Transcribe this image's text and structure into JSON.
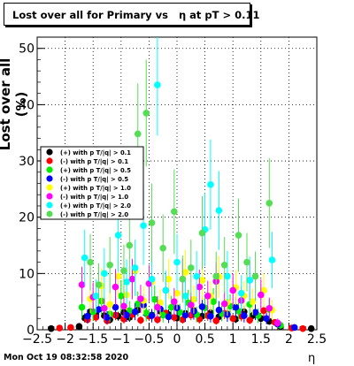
{
  "chart_data": {
    "type": "scatter",
    "title": "Lost over all for Primary vs   η at pT > 0.11",
    "xlabel": "η",
    "ylabel": "Lost over all (%)",
    "xlim": [
      -2.5,
      2.5
    ],
    "ylim": [
      0,
      52
    ],
    "x_ticks": [
      "−2.5",
      "−2",
      "−1.5",
      "−1",
      "−0.5",
      "0",
      "0.5",
      "1",
      "1.5",
      "2",
      "2.5"
    ],
    "y_ticks": [
      "0",
      "10",
      "20",
      "30",
      "40",
      "50"
    ],
    "grid": true,
    "legend_placement": "left-middle",
    "series": [
      {
        "name": "(+) with p T/|q| > 0.1",
        "color": "#000000",
        "points": [
          [
            -2.25,
            0.2
          ],
          [
            -1.75,
            0.6
          ],
          [
            -1.65,
            2.1
          ],
          [
            -1.55,
            3.2
          ],
          [
            -1.45,
            2.8
          ],
          [
            -1.3,
            2.5
          ],
          [
            -1.2,
            1.8
          ],
          [
            -1.05,
            2.4
          ],
          [
            -0.95,
            3.1
          ],
          [
            -0.85,
            2.2
          ],
          [
            -0.7,
            3.5
          ],
          [
            -0.55,
            2.9
          ],
          [
            -0.45,
            2.6
          ],
          [
            -0.3,
            3.3
          ],
          [
            -0.15,
            2.7
          ],
          [
            0.0,
            2.1
          ],
          [
            0.15,
            2.9
          ],
          [
            0.3,
            3.4
          ],
          [
            0.45,
            2.4
          ],
          [
            0.6,
            3.0
          ],
          [
            0.75,
            2.3
          ],
          [
            0.9,
            2.8
          ],
          [
            1.05,
            1.9
          ],
          [
            1.2,
            3.2
          ],
          [
            1.35,
            2.5
          ],
          [
            1.5,
            2.0
          ],
          [
            1.65,
            1.5
          ],
          [
            1.85,
            0.6
          ],
          [
            2.4,
            0.2
          ]
        ],
        "err": [
          0.3,
          0.5,
          0.8,
          1.0,
          0.9,
          0.8,
          0.7,
          0.8,
          1.0,
          0.8,
          1.1,
          0.9,
          0.9,
          1.0,
          0.9,
          0.8,
          0.9,
          1.0,
          0.8,
          1.0,
          0.8,
          0.9,
          0.7,
          1.0,
          0.8,
          0.7,
          0.6,
          0.5,
          0.3
        ]
      },
      {
        "name": "(-) with p T/|q| > 0.1",
        "color": "#ff0000",
        "points": [
          [
            -2.1,
            0.3
          ],
          [
            -1.9,
            0.4
          ],
          [
            -1.6,
            1.8
          ],
          [
            -1.45,
            2.2
          ],
          [
            -1.25,
            1.6
          ],
          [
            -1.1,
            2.6
          ],
          [
            -0.95,
            1.9
          ],
          [
            -0.8,
            2.7
          ],
          [
            -0.65,
            1.7
          ],
          [
            -0.5,
            2.4
          ],
          [
            -0.35,
            1.8
          ],
          [
            -0.2,
            3.0
          ],
          [
            -0.05,
            2.2
          ],
          [
            0.1,
            1.8
          ],
          [
            0.25,
            2.6
          ],
          [
            0.4,
            1.9
          ],
          [
            0.55,
            2.5
          ],
          [
            0.7,
            1.6
          ],
          [
            0.85,
            2.9
          ],
          [
            1.0,
            2.0
          ],
          [
            1.15,
            2.4
          ],
          [
            1.3,
            1.7
          ],
          [
            1.55,
            3.4
          ],
          [
            1.75,
            1.3
          ],
          [
            2.05,
            0.3
          ],
          [
            2.25,
            0.2
          ]
        ],
        "err": [
          0.3,
          0.4,
          0.7,
          0.8,
          0.7,
          0.9,
          0.8,
          0.9,
          0.7,
          0.8,
          0.7,
          1.0,
          0.8,
          0.7,
          0.9,
          0.8,
          0.9,
          0.7,
          1.0,
          0.8,
          0.9,
          0.7,
          1.1,
          0.6,
          0.3,
          0.3
        ]
      },
      {
        "name": "(+) with p T/|q| > 0.5",
        "color": "#00ee00",
        "points": [
          [
            -1.7,
            4.0
          ],
          [
            -1.5,
            3.2
          ],
          [
            -1.35,
            5.1
          ],
          [
            -1.2,
            2.8
          ],
          [
            -1.0,
            6.0
          ],
          [
            -0.85,
            3.4
          ],
          [
            -0.7,
            4.6
          ],
          [
            -0.55,
            3.0
          ],
          [
            -0.4,
            5.4
          ],
          [
            -0.25,
            2.6
          ],
          [
            -0.1,
            4.0
          ],
          [
            0.05,
            3.1
          ],
          [
            0.2,
            4.8
          ],
          [
            0.35,
            2.7
          ],
          [
            0.5,
            3.9
          ],
          [
            0.65,
            5.0
          ],
          [
            0.8,
            2.9
          ],
          [
            0.95,
            4.2
          ],
          [
            1.1,
            3.3
          ],
          [
            1.3,
            4.5
          ],
          [
            1.45,
            2.5
          ],
          [
            1.65,
            3.6
          ],
          [
            1.85,
            0.8
          ]
        ],
        "err": [
          2.0,
          1.6,
          2.5,
          1.4,
          2.8,
          1.7,
          2.2,
          1.5,
          2.5,
          1.3,
          2.0,
          1.5,
          2.3,
          1.4,
          1.9,
          2.4,
          1.4,
          2.1,
          1.6,
          2.2,
          1.3,
          1.8,
          0.6
        ]
      },
      {
        "name": "(-) with p T/|q| > 0.5",
        "color": "#0000ff",
        "points": [
          [
            -1.6,
            2.4
          ],
          [
            -1.4,
            3.6
          ],
          [
            -1.25,
            2.2
          ],
          [
            -1.1,
            4.0
          ],
          [
            -0.9,
            2.6
          ],
          [
            -0.75,
            3.2
          ],
          [
            -0.6,
            4.4
          ],
          [
            -0.45,
            2.5
          ],
          [
            -0.3,
            3.7
          ],
          [
            -0.15,
            2.3
          ],
          [
            0.0,
            3.9
          ],
          [
            0.15,
            2.6
          ],
          [
            0.3,
            3.3
          ],
          [
            0.45,
            4.1
          ],
          [
            0.6,
            2.4
          ],
          [
            0.75,
            3.5
          ],
          [
            0.9,
            2.7
          ],
          [
            1.05,
            4.0
          ],
          [
            1.2,
            2.5
          ],
          [
            1.4,
            3.1
          ],
          [
            1.6,
            2.0
          ],
          [
            1.8,
            1.0
          ],
          [
            2.1,
            0.4
          ]
        ],
        "err": [
          1.2,
          1.6,
          1.1,
          1.8,
          1.2,
          1.5,
          1.9,
          1.2,
          1.6,
          1.1,
          1.7,
          1.2,
          1.5,
          1.8,
          1.1,
          1.6,
          1.3,
          1.8,
          1.2,
          1.4,
          1.0,
          0.6,
          0.3
        ]
      },
      {
        "name": "(+) with p T/|q| > 1.0",
        "color": "#ffff00",
        "points": [
          [
            -1.55,
            5.5
          ],
          [
            -1.35,
            7.8
          ],
          [
            -1.2,
            4.5
          ],
          [
            -1.05,
            9.5
          ],
          [
            -0.9,
            6.2
          ],
          [
            -0.75,
            10.5
          ],
          [
            -0.6,
            5.2
          ],
          [
            -0.45,
            8.5
          ],
          [
            -0.3,
            4.8
          ],
          [
            -0.15,
            9.0
          ],
          [
            0.0,
            6.5
          ],
          [
            0.15,
            10.2
          ],
          [
            0.3,
            5.4
          ],
          [
            0.45,
            8.8
          ],
          [
            0.6,
            6.0
          ],
          [
            0.75,
            9.4
          ],
          [
            0.9,
            4.9
          ],
          [
            1.05,
            7.5
          ],
          [
            1.2,
            6.0
          ],
          [
            1.35,
            5.0
          ],
          [
            1.55,
            7.0
          ],
          [
            1.7,
            3.5
          ]
        ],
        "err": [
          2.5,
          3.2,
          2.2,
          3.8,
          2.8,
          4.0,
          2.5,
          3.5,
          2.4,
          3.6,
          2.9,
          4.0,
          2.5,
          3.5,
          2.7,
          3.7,
          2.4,
          3.1,
          2.7,
          2.4,
          3.0,
          1.8
        ]
      },
      {
        "name": "(-) with p T/|q| > 1.0",
        "color": "#ff00ff",
        "points": [
          [
            -1.7,
            8.0
          ],
          [
            -1.5,
            5.8
          ],
          [
            -1.3,
            3.8
          ],
          [
            -1.1,
            7.6
          ],
          [
            -0.95,
            4.2
          ],
          [
            -0.8,
            9.0
          ],
          [
            -0.65,
            5.5
          ],
          [
            -0.5,
            8.2
          ],
          [
            -0.35,
            4.0
          ],
          [
            -0.2,
            7.0
          ],
          [
            -0.05,
            5.0
          ],
          [
            0.1,
            9.0
          ],
          [
            0.25,
            4.4
          ],
          [
            0.4,
            7.6
          ],
          [
            0.55,
            6.0
          ],
          [
            0.7,
            8.6
          ],
          [
            0.85,
            4.6
          ],
          [
            1.0,
            7.0
          ],
          [
            1.15,
            5.2
          ],
          [
            1.3,
            8.8
          ],
          [
            1.5,
            6.2
          ],
          [
            1.65,
            3.8
          ],
          [
            1.8,
            1.2
          ]
        ],
        "err": [
          3.2,
          2.6,
          2.0,
          3.2,
          2.1,
          3.6,
          2.5,
          3.3,
          2.0,
          3.0,
          2.4,
          3.6,
          2.2,
          3.1,
          2.7,
          3.4,
          2.2,
          3.0,
          2.4,
          3.5,
          2.8,
          1.9,
          0.8
        ]
      },
      {
        "name": "(+) with p T/|q| > 2.0",
        "color": "#00ffff",
        "points": [
          [
            -1.65,
            12.8
          ],
          [
            -1.45,
            6.0
          ],
          [
            -1.3,
            10.0
          ],
          [
            -1.05,
            16.8
          ],
          [
            -0.9,
            8.5
          ],
          [
            -0.75,
            11.0
          ],
          [
            -0.6,
            18.5
          ],
          [
            -0.45,
            9.0
          ],
          [
            -0.35,
            43.5
          ],
          [
            -0.2,
            7.0
          ],
          [
            0.0,
            12.0
          ],
          [
            0.15,
            6.0
          ],
          [
            0.35,
            9.5
          ],
          [
            0.5,
            17.8
          ],
          [
            0.6,
            25.8
          ],
          [
            0.75,
            21.2
          ],
          [
            0.9,
            9.5
          ],
          [
            1.15,
            6.5
          ],
          [
            1.3,
            8.8
          ],
          [
            1.7,
            12.4
          ]
        ],
        "err": [
          5.0,
          3.0,
          4.5,
          6.5,
          4.0,
          5.0,
          7.0,
          4.0,
          9.0,
          3.5,
          5.0,
          3.0,
          4.5,
          6.5,
          8.0,
          7.0,
          4.5,
          3.2,
          4.2,
          5.0
        ]
      },
      {
        "name": "(-) with p T/|q| > 2.0",
        "color": "#55dd55",
        "points": [
          [
            -1.55,
            12.0
          ],
          [
            -1.4,
            8.0
          ],
          [
            -1.2,
            11.5
          ],
          [
            -0.95,
            10.5
          ],
          [
            -0.85,
            15.0
          ],
          [
            -0.7,
            34.8
          ],
          [
            -0.55,
            38.5
          ],
          [
            -0.45,
            19.0
          ],
          [
            -0.25,
            14.5
          ],
          [
            -0.05,
            21.0
          ],
          [
            0.1,
            9.0
          ],
          [
            0.25,
            11.0
          ],
          [
            0.45,
            17.2
          ],
          [
            0.7,
            9.5
          ],
          [
            0.85,
            11.5
          ],
          [
            1.1,
            16.8
          ],
          [
            1.25,
            12.0
          ],
          [
            1.4,
            9.5
          ],
          [
            1.65,
            22.5
          ]
        ],
        "err": [
          5.0,
          3.8,
          5.0,
          4.6,
          6.0,
          9.0,
          9.5,
          7.0,
          6.0,
          7.5,
          4.2,
          5.0,
          6.5,
          4.4,
          5.0,
          6.5,
          5.2,
          4.4,
          8.0
        ]
      }
    ]
  },
  "footer": {
    "timestamp": "Mon Oct 19 08:32:58 2020"
  }
}
